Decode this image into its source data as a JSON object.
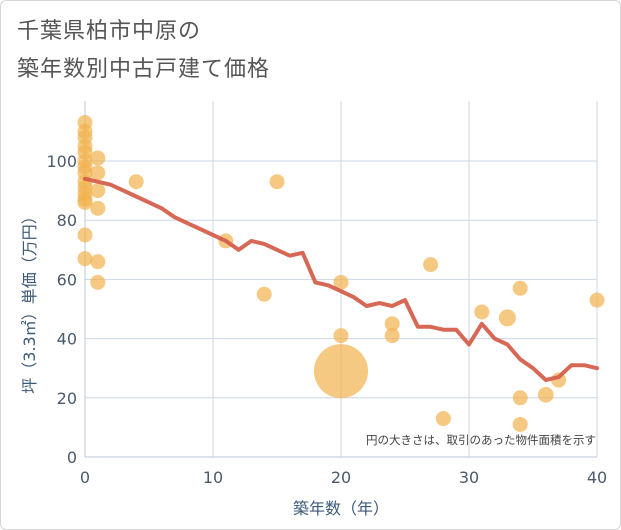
{
  "title_line1": "千葉県柏市中原の",
  "title_line2": "築年数別中古戸建て価格",
  "chart_data": {
    "type": "scatter",
    "xlabel": "築年数（年）",
    "ylabel": "坪（3.3㎡）単価（万円）",
    "xlim": [
      0,
      40
    ],
    "ylim": [
      0,
      115
    ],
    "x_ticks": [
      "0",
      "10",
      "20",
      "30",
      "40"
    ],
    "y_ticks": [
      "0",
      "20",
      "40",
      "60",
      "80",
      "100"
    ],
    "grid": true,
    "annotation": "円の大きさは、取引のあった物件面積を示す",
    "colors": {
      "scatter": "#f2b24f",
      "trend": "#d4604c",
      "grid": "#c9d7e6"
    },
    "scatter": [
      {
        "x": 0,
        "y": 113,
        "size": 1
      },
      {
        "x": 0,
        "y": 110,
        "size": 1
      },
      {
        "x": 0,
        "y": 108,
        "size": 1
      },
      {
        "x": 0,
        "y": 105,
        "size": 1
      },
      {
        "x": 0,
        "y": 103,
        "size": 1
      },
      {
        "x": 0,
        "y": 100,
        "size": 1
      },
      {
        "x": 0,
        "y": 98,
        "size": 1
      },
      {
        "x": 0,
        "y": 96,
        "size": 1
      },
      {
        "x": 0,
        "y": 93,
        "size": 1
      },
      {
        "x": 0,
        "y": 91,
        "size": 1
      },
      {
        "x": 0,
        "y": 89,
        "size": 1
      },
      {
        "x": 0,
        "y": 87,
        "size": 1
      },
      {
        "x": 0,
        "y": 86,
        "size": 1
      },
      {
        "x": 0,
        "y": 75,
        "size": 1
      },
      {
        "x": 0,
        "y": 67,
        "size": 1
      },
      {
        "x": 1,
        "y": 101,
        "size": 1
      },
      {
        "x": 1,
        "y": 96,
        "size": 1
      },
      {
        "x": 1,
        "y": 90,
        "size": 1
      },
      {
        "x": 1,
        "y": 84,
        "size": 1
      },
      {
        "x": 1,
        "y": 66,
        "size": 1
      },
      {
        "x": 1,
        "y": 59,
        "size": 1
      },
      {
        "x": 4,
        "y": 93,
        "size": 1
      },
      {
        "x": 11,
        "y": 73,
        "size": 1
      },
      {
        "x": 14,
        "y": 55,
        "size": 1
      },
      {
        "x": 15,
        "y": 93,
        "size": 1
      },
      {
        "x": 20,
        "y": 59,
        "size": 1
      },
      {
        "x": 20,
        "y": 41,
        "size": 1
      },
      {
        "x": 20,
        "y": 29,
        "size": 13
      },
      {
        "x": 24,
        "y": 45,
        "size": 1
      },
      {
        "x": 24,
        "y": 41,
        "size": 1
      },
      {
        "x": 27,
        "y": 65,
        "size": 1
      },
      {
        "x": 28,
        "y": 13,
        "size": 1
      },
      {
        "x": 31,
        "y": 49,
        "size": 1
      },
      {
        "x": 33,
        "y": 47,
        "size": 1.3
      },
      {
        "x": 34,
        "y": 57,
        "size": 1
      },
      {
        "x": 34,
        "y": 20,
        "size": 1
      },
      {
        "x": 34,
        "y": 11,
        "size": 1
      },
      {
        "x": 36,
        "y": 21,
        "size": 1.1
      },
      {
        "x": 37,
        "y": 26,
        "size": 1
      },
      {
        "x": 40,
        "y": 53,
        "size": 1
      }
    ],
    "trend": [
      {
        "x": 0,
        "y": 94
      },
      {
        "x": 1,
        "y": 93
      },
      {
        "x": 2,
        "y": 92
      },
      {
        "x": 3,
        "y": 90
      },
      {
        "x": 4,
        "y": 88
      },
      {
        "x": 5,
        "y": 86
      },
      {
        "x": 6,
        "y": 84
      },
      {
        "x": 7,
        "y": 81
      },
      {
        "x": 8,
        "y": 79
      },
      {
        "x": 9,
        "y": 77
      },
      {
        "x": 10,
        "y": 75
      },
      {
        "x": 11,
        "y": 73
      },
      {
        "x": 12,
        "y": 70
      },
      {
        "x": 13,
        "y": 73
      },
      {
        "x": 14,
        "y": 72
      },
      {
        "x": 15,
        "y": 70
      },
      {
        "x": 16,
        "y": 68
      },
      {
        "x": 17,
        "y": 69
      },
      {
        "x": 18,
        "y": 59
      },
      {
        "x": 19,
        "y": 58
      },
      {
        "x": 20,
        "y": 56
      },
      {
        "x": 21,
        "y": 54
      },
      {
        "x": 22,
        "y": 51
      },
      {
        "x": 23,
        "y": 52
      },
      {
        "x": 24,
        "y": 51
      },
      {
        "x": 25,
        "y": 53
      },
      {
        "x": 26,
        "y": 44
      },
      {
        "x": 27,
        "y": 44
      },
      {
        "x": 28,
        "y": 43
      },
      {
        "x": 29,
        "y": 43
      },
      {
        "x": 30,
        "y": 38
      },
      {
        "x": 31,
        "y": 45
      },
      {
        "x": 32,
        "y": 40
      },
      {
        "x": 33,
        "y": 38
      },
      {
        "x": 34,
        "y": 33
      },
      {
        "x": 35,
        "y": 30
      },
      {
        "x": 36,
        "y": 26
      },
      {
        "x": 37,
        "y": 27
      },
      {
        "x": 38,
        "y": 31
      },
      {
        "x": 39,
        "y": 31
      },
      {
        "x": 40,
        "y": 30
      }
    ]
  }
}
